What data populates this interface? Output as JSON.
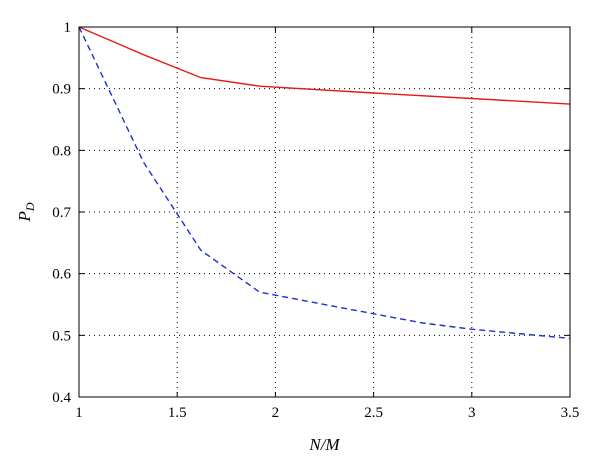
{
  "chart_data": {
    "type": "line",
    "xlabel": "N/M",
    "ylabel": "P",
    "ylabel_sub": "D",
    "xlim": [
      1,
      3.5
    ],
    "ylim": [
      0.4,
      1
    ],
    "x_ticks": [
      1,
      1.5,
      2,
      2.5,
      3,
      3.5
    ],
    "x_tick_labels": [
      "1",
      "1.5",
      "2",
      "2.5",
      "3",
      "3.5"
    ],
    "y_ticks": [
      0.4,
      0.5,
      0.6,
      0.7,
      0.8,
      0.9,
      1
    ],
    "y_tick_labels": [
      "0.4",
      "0.5",
      "0.6",
      "0.7",
      "0.8",
      "0.9",
      "1"
    ],
    "grid": true,
    "series": [
      {
        "color": "#e41a1c",
        "dash": "solid",
        "x": [
          1,
          1.33,
          1.62,
          1.92,
          2.5,
          3,
          3.5
        ],
        "y": [
          1,
          0.955,
          0.918,
          0.904,
          0.893,
          0.884,
          0.875
        ]
      },
      {
        "color": "#1f2fcc",
        "dash": "dashed",
        "x": [
          1,
          1.33,
          1.62,
          1.92,
          2.5,
          2.75,
          3,
          3.5
        ],
        "y": [
          1,
          0.78,
          0.638,
          0.57,
          0.535,
          0.52,
          0.51,
          0.495
        ]
      }
    ]
  }
}
